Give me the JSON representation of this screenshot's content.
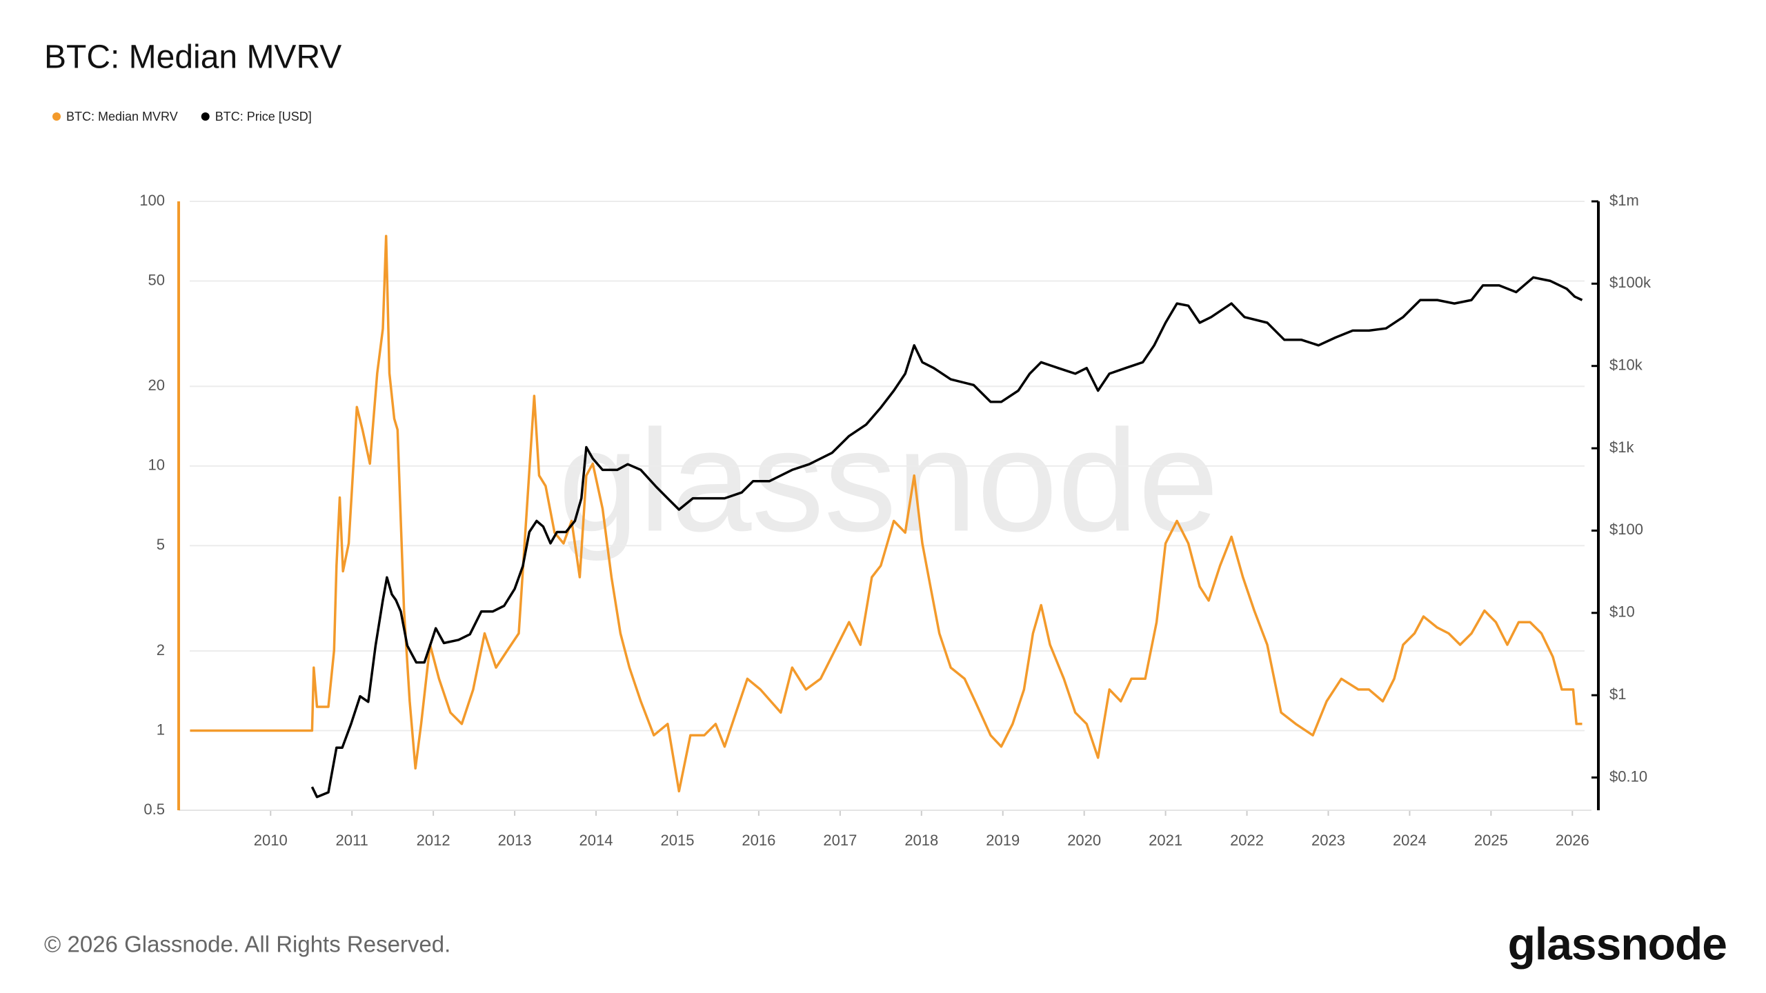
{
  "chart_data": {
    "type": "line",
    "title": "BTC: Median MVRV",
    "copyright": "© 2026 Glassnode. All Rights Reserved.",
    "logo": "glassnode",
    "watermark": "glassnode",
    "legend": "top-left",
    "grid": true,
    "ylog": true,
    "y2log": true,
    "xlim": [
      2008.87,
      2026.15
    ],
    "xticks": [
      2010,
      2011,
      2012,
      2013,
      2014,
      2015,
      2016,
      2017,
      2018,
      2019,
      2020,
      2021,
      2022,
      2023,
      2024,
      2025,
      2026
    ],
    "ylim": [
      0.5,
      100
    ],
    "yticks": [
      0.5,
      1,
      2,
      5,
      10,
      20,
      50,
      100
    ],
    "y2lim": [
      0.04,
      1000000
    ],
    "y2ticks": [
      {
        "value": 0.1,
        "label": "$0.10"
      },
      {
        "value": 1,
        "label": "$1"
      },
      {
        "value": 10,
        "label": "$10"
      },
      {
        "value": 100,
        "label": "$100"
      },
      {
        "value": 1000,
        "label": "$1k"
      },
      {
        "value": 10000,
        "label": "$10k"
      },
      {
        "value": 100000,
        "label": "$100k"
      },
      {
        "value": 1000000,
        "label": "$1m"
      }
    ],
    "series": [
      {
        "name": "BTC: Median MVRV",
        "color": "#f39a2b",
        "axis": "y",
        "x": [
          2009.01,
          2010.51,
          2010.53,
          2010.57,
          2010.71,
          2010.78,
          2010.81,
          2010.85,
          2010.89,
          2010.96,
          2011.06,
          2011.13,
          2011.22,
          2011.31,
          2011.38,
          2011.42,
          2011.46,
          2011.52,
          2011.56,
          2011.6,
          2011.64,
          2011.71,
          2011.78,
          2011.85,
          2011.96,
          2012.07,
          2012.21,
          2012.35,
          2012.49,
          2012.63,
          2012.77,
          2012.91,
          2013.05,
          2013.14,
          2013.24,
          2013.3,
          2013.38,
          2013.49,
          2013.6,
          2013.7,
          2013.8,
          2013.88,
          2013.96,
          2014.08,
          2014.19,
          2014.3,
          2014.41,
          2014.55,
          2014.71,
          2014.88,
          2015.02,
          2015.16,
          2015.33,
          2015.47,
          2015.58,
          2015.72,
          2015.86,
          2016.02,
          2016.27,
          2016.41,
          2016.58,
          2016.76,
          2016.97,
          2017.11,
          2017.25,
          2017.39,
          2017.5,
          2017.66,
          2017.8,
          2017.91,
          2018.01,
          2018.11,
          2018.22,
          2018.36,
          2018.53,
          2018.66,
          2018.85,
          2018.98,
          2019.12,
          2019.26,
          2019.37,
          2019.47,
          2019.58,
          2019.75,
          2019.89,
          2020.03,
          2020.17,
          2020.31,
          2020.45,
          2020.58,
          2020.75,
          2020.89,
          2021.0,
          2021.14,
          2021.28,
          2021.42,
          2021.53,
          2021.67,
          2021.81,
          2021.95,
          2022.09,
          2022.25,
          2022.42,
          2022.6,
          2022.81,
          2022.98,
          2023.16,
          2023.37,
          2023.5,
          2023.67,
          2023.81,
          2023.92,
          2024.06,
          2024.17,
          2024.34,
          2024.48,
          2024.62,
          2024.76,
          2024.92,
          2025.06,
          2025.2,
          2025.34,
          2025.48,
          2025.62,
          2025.76,
          2025.87,
          2026.01,
          2026.05,
          2026.12
        ],
        "values": [
          1.0,
          1.0,
          1.73,
          1.23,
          1.23,
          2.01,
          4.2,
          7.6,
          4.0,
          5.1,
          16.7,
          13.7,
          10.2,
          22.4,
          33,
          74,
          22.4,
          15.1,
          13.7,
          6.2,
          2.84,
          1.29,
          0.72,
          1.06,
          2.11,
          1.57,
          1.17,
          1.06,
          1.43,
          2.33,
          1.73,
          2.01,
          2.33,
          6.2,
          18.4,
          9.2,
          8.4,
          5.6,
          5.1,
          6.2,
          3.8,
          9.2,
          10.2,
          6.9,
          3.8,
          2.33,
          1.73,
          1.29,
          0.96,
          1.06,
          0.59,
          0.96,
          0.96,
          1.06,
          0.87,
          1.17,
          1.57,
          1.43,
          1.17,
          1.73,
          1.43,
          1.57,
          2.11,
          2.57,
          2.11,
          3.8,
          4.2,
          6.2,
          5.6,
          9.2,
          5.1,
          3.5,
          2.33,
          1.73,
          1.57,
          1.29,
          0.96,
          0.87,
          1.06,
          1.43,
          2.33,
          2.98,
          2.11,
          1.57,
          1.17,
          1.06,
          0.79,
          1.43,
          1.29,
          1.57,
          1.57,
          2.57,
          5.1,
          6.2,
          5.1,
          3.5,
          3.1,
          4.2,
          5.4,
          3.8,
          2.84,
          2.11,
          1.17,
          1.06,
          0.96,
          1.29,
          1.57,
          1.43,
          1.43,
          1.29,
          1.57,
          2.11,
          2.33,
          2.7,
          2.45,
          2.33,
          2.11,
          2.33,
          2.84,
          2.57,
          2.11,
          2.57,
          2.57,
          2.33,
          1.9,
          1.43,
          1.43,
          1.06,
          1.06
        ]
      },
      {
        "name": "BTC: Price [USD]",
        "color": "#000000",
        "axis": "y2",
        "x": [
          2010.51,
          2010.57,
          2010.71,
          2010.81,
          2010.88,
          2010.99,
          2011.1,
          2011.2,
          2011.29,
          2011.38,
          2011.43,
          2011.49,
          2011.54,
          2011.6,
          2011.68,
          2011.79,
          2011.89,
          2011.96,
          2012.03,
          2012.13,
          2012.31,
          2012.45,
          2012.59,
          2012.73,
          2012.87,
          2013.0,
          2013.1,
          2013.18,
          2013.27,
          2013.35,
          2013.44,
          2013.52,
          2013.63,
          2013.74,
          2013.82,
          2013.88,
          2013.96,
          2014.08,
          2014.26,
          2014.39,
          2014.55,
          2014.74,
          2014.88,
          2015.02,
          2015.19,
          2015.37,
          2015.58,
          2015.79,
          2015.93,
          2016.13,
          2016.41,
          2016.62,
          2016.9,
          2017.11,
          2017.32,
          2017.5,
          2017.66,
          2017.8,
          2017.91,
          2018.01,
          2018.15,
          2018.36,
          2018.64,
          2018.85,
          2018.98,
          2019.19,
          2019.33,
          2019.47,
          2019.68,
          2019.89,
          2020.03,
          2020.17,
          2020.31,
          2020.51,
          2020.72,
          2020.86,
          2021.0,
          2021.14,
          2021.28,
          2021.42,
          2021.56,
          2021.81,
          2021.97,
          2022.25,
          2022.46,
          2022.67,
          2022.88,
          2023.09,
          2023.3,
          2023.5,
          2023.71,
          2023.92,
          2024.13,
          2024.34,
          2024.55,
          2024.76,
          2024.9,
          2025.1,
          2025.31,
          2025.52,
          2025.73,
          2025.93,
          2026.03,
          2026.12
        ],
        "values": [
          0.077,
          0.058,
          0.066,
          0.23,
          0.23,
          0.45,
          0.97,
          0.83,
          4.0,
          14.3,
          27,
          16.8,
          14.3,
          10.4,
          4.0,
          2.5,
          2.5,
          4.0,
          6.5,
          4.3,
          4.7,
          5.5,
          10.4,
          10.4,
          12.2,
          19.6,
          37,
          96,
          131,
          112,
          70,
          96,
          96,
          131,
          247,
          1030,
          750,
          546,
          546,
          640,
          546,
          340,
          247,
          180,
          247,
          247,
          247,
          290,
          398,
          398,
          546,
          640,
          880,
          1410,
          1940,
          3120,
          5010,
          8060,
          17800,
          11100,
          9440,
          6880,
          5870,
          3660,
          3660,
          5010,
          8060,
          11100,
          9440,
          8060,
          9440,
          5010,
          8060,
          9440,
          11100,
          17800,
          33500,
          57400,
          54000,
          33500,
          39300,
          57400,
          39300,
          33500,
          20800,
          20800,
          17800,
          22200,
          26900,
          26900,
          28600,
          39300,
          63200,
          63200,
          57400,
          63200,
          95300,
          95300,
          78900,
          119000,
          108000,
          86700,
          69500,
          63200
        ]
      }
    ]
  }
}
